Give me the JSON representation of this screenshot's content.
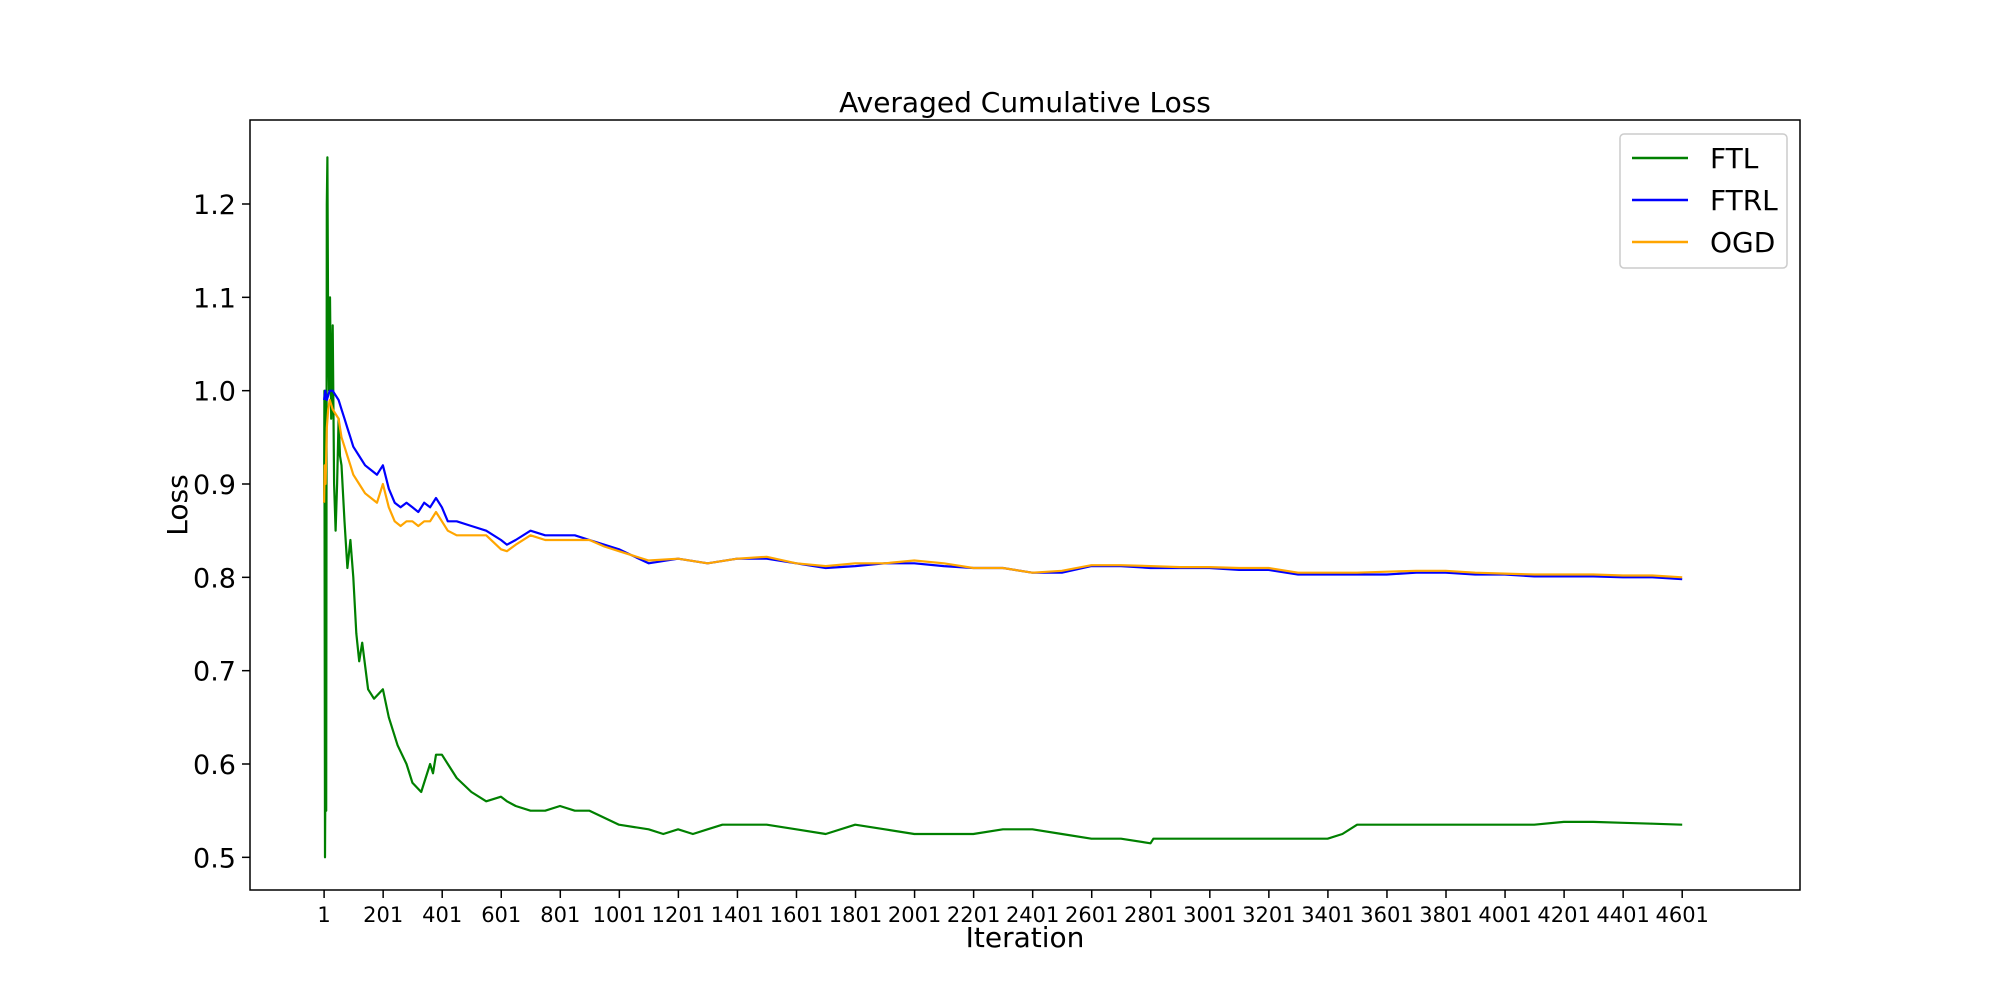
{
  "chart_data": {
    "type": "line",
    "title": "Averaged Cumulative Loss",
    "xlabel": "Iteration",
    "ylabel": "Loss",
    "xlim": [
      -250,
      5000
    ],
    "ylim": [
      0.465,
      1.29
    ],
    "x_ticks": [
      1,
      201,
      401,
      601,
      801,
      1001,
      1201,
      1401,
      1601,
      1801,
      2001,
      2201,
      2401,
      2601,
      2801,
      3001,
      3201,
      3401,
      3601,
      3801,
      4001,
      4201,
      4401,
      4601
    ],
    "y_ticks": [
      0.5,
      0.6,
      0.7,
      0.8,
      0.9,
      1.0,
      1.1,
      1.2
    ],
    "y_tick_labels": [
      "0.5",
      "0.6",
      "0.7",
      "0.8",
      "0.9",
      "1.0",
      "1.1",
      "1.2"
    ],
    "grid": false,
    "legend_position": "top-right",
    "series": [
      {
        "name": "FTL",
        "color": "#008000",
        "x": [
          1,
          2,
          4,
          6,
          8,
          10,
          12,
          15,
          18,
          21,
          25,
          30,
          35,
          40,
          45,
          50,
          55,
          60,
          70,
          80,
          90,
          100,
          110,
          120,
          130,
          150,
          170,
          200,
          220,
          250,
          280,
          300,
          330,
          360,
          370,
          380,
          400,
          420,
          450,
          500,
          550,
          600,
          620,
          650,
          700,
          750,
          800,
          850,
          900,
          1000,
          1100,
          1150,
          1200,
          1250,
          1300,
          1350,
          1400,
          1500,
          1600,
          1700,
          1800,
          1900,
          2000,
          2100,
          2200,
          2300,
          2400,
          2500,
          2600,
          2700,
          2800,
          2810,
          2900,
          3000,
          3100,
          3200,
          3300,
          3400,
          3450,
          3500,
          3600,
          3700,
          3800,
          3900,
          4000,
          4100,
          4200,
          4300,
          4400,
          4500,
          4601
        ],
        "values": [
          0.88,
          1.0,
          0.5,
          0.63,
          0.55,
          1.2,
          1.25,
          1.05,
          1.0,
          1.1,
          0.97,
          1.07,
          0.9,
          0.85,
          0.9,
          0.97,
          0.93,
          0.92,
          0.86,
          0.81,
          0.84,
          0.8,
          0.74,
          0.71,
          0.73,
          0.68,
          0.67,
          0.68,
          0.65,
          0.62,
          0.6,
          0.58,
          0.57,
          0.6,
          0.59,
          0.61,
          0.61,
          0.6,
          0.585,
          0.57,
          0.56,
          0.565,
          0.56,
          0.555,
          0.55,
          0.55,
          0.555,
          0.55,
          0.55,
          0.535,
          0.53,
          0.525,
          0.53,
          0.525,
          0.53,
          0.535,
          0.535,
          0.535,
          0.53,
          0.525,
          0.535,
          0.53,
          0.525,
          0.525,
          0.525,
          0.53,
          0.53,
          0.525,
          0.52,
          0.52,
          0.515,
          0.52,
          0.52,
          0.52,
          0.52,
          0.52,
          0.52,
          0.52,
          0.525,
          0.535,
          0.535,
          0.535,
          0.535,
          0.535,
          0.535,
          0.535,
          0.538,
          0.538,
          0.537,
          0.536,
          0.535
        ]
      },
      {
        "name": "FTRL",
        "color": "#0000ff",
        "x": [
          1,
          5,
          10,
          20,
          30,
          40,
          50,
          60,
          70,
          80,
          90,
          100,
          120,
          140,
          160,
          180,
          200,
          220,
          240,
          260,
          280,
          300,
          320,
          340,
          360,
          380,
          400,
          420,
          450,
          500,
          550,
          600,
          620,
          650,
          700,
          750,
          800,
          850,
          900,
          950,
          1000,
          1100,
          1200,
          1300,
          1400,
          1500,
          1600,
          1700,
          1800,
          1900,
          2000,
          2100,
          2200,
          2300,
          2400,
          2500,
          2600,
          2700,
          2800,
          2900,
          3000,
          3100,
          3200,
          3300,
          3400,
          3500,
          3600,
          3700,
          3800,
          3900,
          4000,
          4100,
          4200,
          4300,
          4400,
          4500,
          4601
        ],
        "values": [
          0.99,
          1.0,
          0.99,
          1.0,
          1.0,
          0.995,
          0.99,
          0.98,
          0.97,
          0.96,
          0.95,
          0.94,
          0.93,
          0.92,
          0.915,
          0.91,
          0.92,
          0.895,
          0.88,
          0.875,
          0.88,
          0.875,
          0.87,
          0.88,
          0.875,
          0.885,
          0.875,
          0.86,
          0.86,
          0.855,
          0.85,
          0.84,
          0.835,
          0.84,
          0.85,
          0.845,
          0.845,
          0.845,
          0.84,
          0.835,
          0.83,
          0.815,
          0.82,
          0.815,
          0.82,
          0.82,
          0.815,
          0.81,
          0.812,
          0.815,
          0.815,
          0.812,
          0.81,
          0.81,
          0.805,
          0.805,
          0.812,
          0.812,
          0.81,
          0.81,
          0.81,
          0.808,
          0.808,
          0.803,
          0.803,
          0.803,
          0.803,
          0.805,
          0.805,
          0.803,
          0.803,
          0.801,
          0.801,
          0.801,
          0.8,
          0.8,
          0.798
        ]
      },
      {
        "name": "OGD",
        "color": "#ffa500",
        "x": [
          1,
          3,
          6,
          10,
          15,
          20,
          30,
          40,
          50,
          60,
          70,
          80,
          90,
          100,
          120,
          140,
          160,
          180,
          200,
          220,
          240,
          260,
          280,
          300,
          320,
          340,
          360,
          380,
          400,
          420,
          450,
          500,
          550,
          600,
          620,
          650,
          700,
          750,
          800,
          850,
          900,
          950,
          1000,
          1100,
          1200,
          1300,
          1400,
          1500,
          1600,
          1700,
          1800,
          1900,
          2000,
          2100,
          2200,
          2300,
          2400,
          2500,
          2600,
          2700,
          2800,
          2900,
          3000,
          3100,
          3200,
          3300,
          3400,
          3500,
          3600,
          3700,
          3800,
          3900,
          4000,
          4100,
          4200,
          4300,
          4400,
          4500,
          4601
        ],
        "values": [
          0.88,
          0.92,
          0.9,
          0.96,
          0.98,
          0.99,
          0.98,
          0.975,
          0.97,
          0.95,
          0.94,
          0.93,
          0.92,
          0.91,
          0.9,
          0.89,
          0.885,
          0.88,
          0.9,
          0.875,
          0.86,
          0.855,
          0.86,
          0.86,
          0.855,
          0.86,
          0.86,
          0.87,
          0.86,
          0.85,
          0.845,
          0.845,
          0.845,
          0.83,
          0.828,
          0.835,
          0.845,
          0.84,
          0.84,
          0.84,
          0.84,
          0.833,
          0.828,
          0.818,
          0.82,
          0.815,
          0.82,
          0.822,
          0.815,
          0.812,
          0.815,
          0.815,
          0.818,
          0.815,
          0.81,
          0.81,
          0.805,
          0.807,
          0.813,
          0.813,
          0.812,
          0.811,
          0.811,
          0.81,
          0.81,
          0.805,
          0.805,
          0.805,
          0.806,
          0.807,
          0.807,
          0.805,
          0.804,
          0.803,
          0.803,
          0.803,
          0.802,
          0.802,
          0.8
        ]
      }
    ]
  }
}
